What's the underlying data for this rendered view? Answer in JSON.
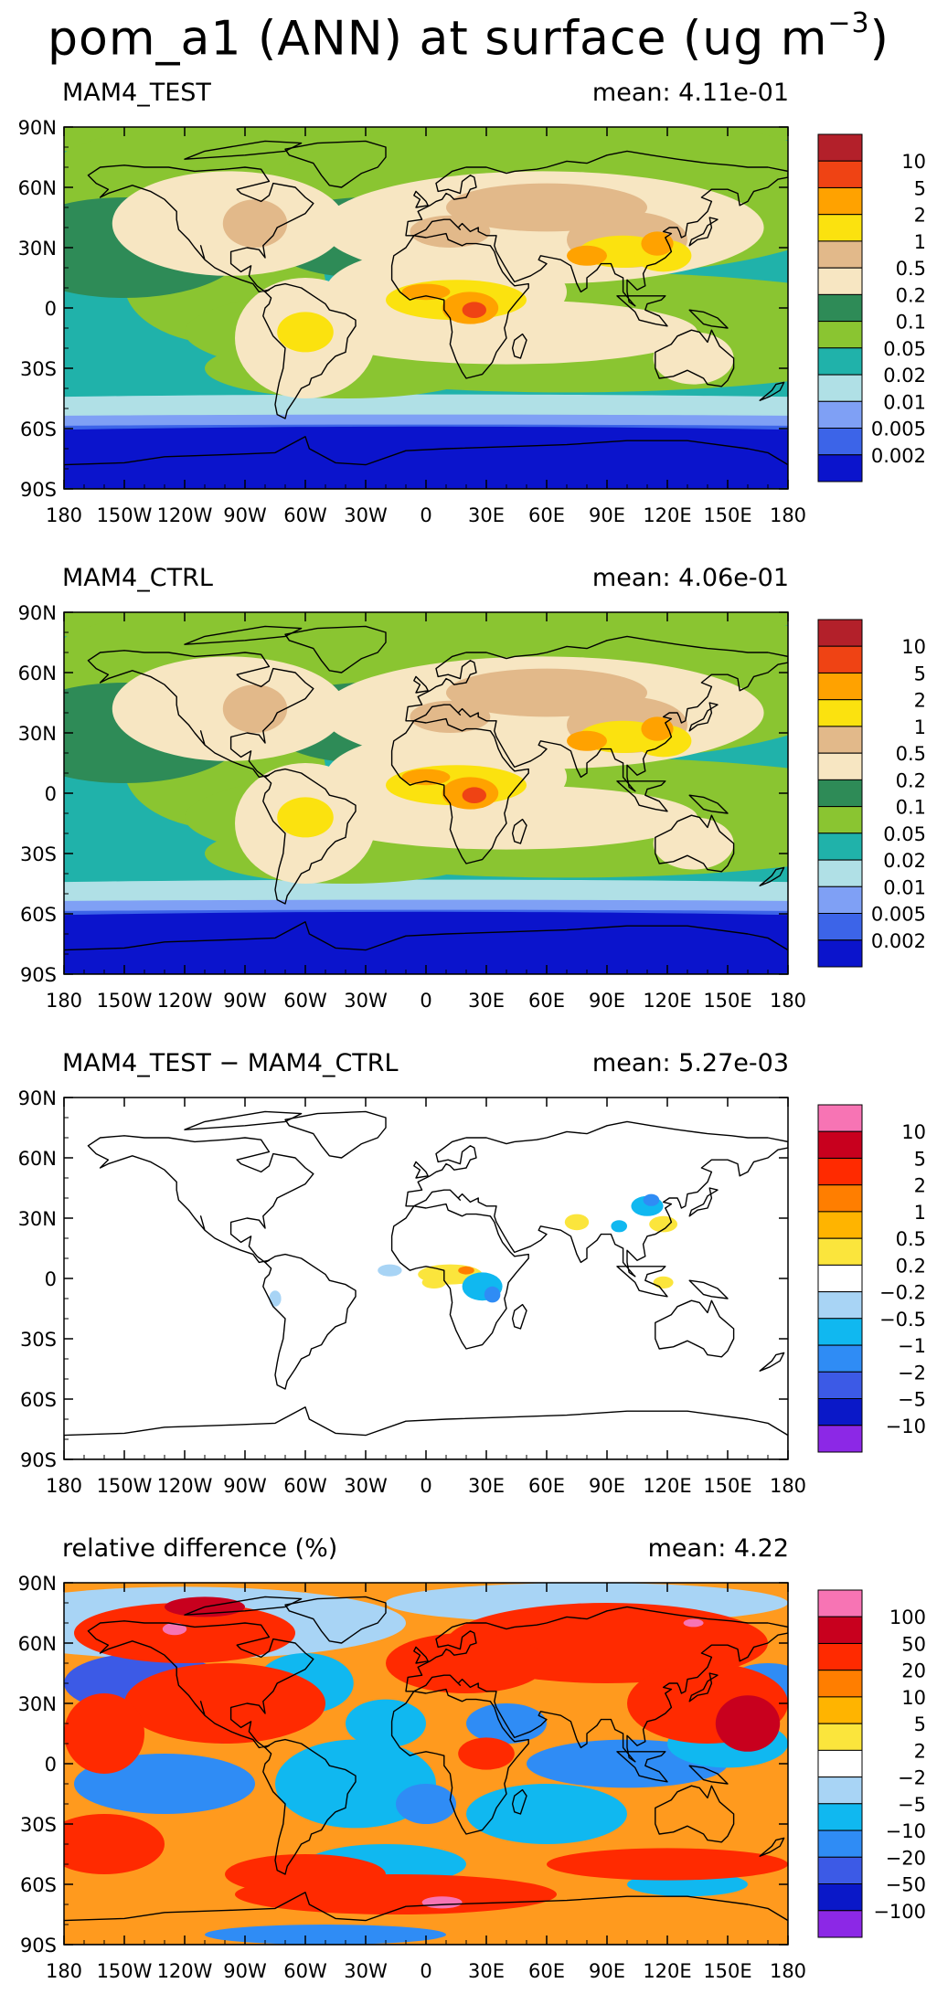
{
  "figure": {
    "title": "pom_a1 (ANN) at surface (ug m",
    "units_exponent": "−3"
  },
  "chart_data": [
    {
      "type": "heatmap",
      "title": "MAM4_TEST",
      "mean_label": "mean: 4.11e-01",
      "mean_value": 0.411,
      "x_ticks": [
        "180",
        "150W",
        "120W",
        "90W",
        "60W",
        "30W",
        "0",
        "30E",
        "60E",
        "90E",
        "120E",
        "150E",
        "180"
      ],
      "y_ticks": [
        "90N",
        "60N",
        "30N",
        "0",
        "30S",
        "60S",
        "90S"
      ],
      "xlim": [
        -180,
        180
      ],
      "ylim": [
        -90,
        90
      ],
      "colorbar": {
        "labels": [
          "10",
          "5",
          "2",
          "1",
          "0.5",
          "0.2",
          "0.1",
          "0.05",
          "0.02",
          "0.01",
          "0.005",
          "0.002"
        ],
        "colors": [
          "#b3202a",
          "#ef4314",
          "#ffa200",
          "#fbe20f",
          "#e2b98a",
          "#f7e6c2",
          "#2e8b57",
          "#8ac531",
          "#20b2aa",
          "#b0e0e6",
          "#7fa0f5",
          "#3c64e8",
          "#0b14cc"
        ]
      },
      "background": "#20b2aa"
    },
    {
      "type": "heatmap",
      "title": "MAM4_CTRL",
      "mean_label": "mean: 4.06e-01",
      "mean_value": 0.406,
      "x_ticks": [
        "180",
        "150W",
        "120W",
        "90W",
        "60W",
        "30W",
        "0",
        "30E",
        "60E",
        "90E",
        "120E",
        "150E",
        "180"
      ],
      "y_ticks": [
        "90N",
        "60N",
        "30N",
        "0",
        "30S",
        "60S",
        "90S"
      ],
      "xlim": [
        -180,
        180
      ],
      "ylim": [
        -90,
        90
      ],
      "colorbar": {
        "labels": [
          "10",
          "5",
          "2",
          "1",
          "0.5",
          "0.2",
          "0.1",
          "0.05",
          "0.02",
          "0.01",
          "0.005",
          "0.002"
        ],
        "colors": [
          "#b3202a",
          "#ef4314",
          "#ffa200",
          "#fbe20f",
          "#e2b98a",
          "#f7e6c2",
          "#2e8b57",
          "#8ac531",
          "#20b2aa",
          "#b0e0e6",
          "#7fa0f5",
          "#3c64e8",
          "#0b14cc"
        ]
      },
      "background": "#20b2aa"
    },
    {
      "type": "heatmap",
      "title": "MAM4_TEST − MAM4_CTRL",
      "mean_label": "mean: 5.27e-03",
      "mean_value": 0.00527,
      "x_ticks": [
        "180",
        "150W",
        "120W",
        "90W",
        "60W",
        "30W",
        "0",
        "30E",
        "60E",
        "90E",
        "120E",
        "150E",
        "180"
      ],
      "y_ticks": [
        "90N",
        "60N",
        "30N",
        "0",
        "30S",
        "60S",
        "90S"
      ],
      "xlim": [
        -180,
        180
      ],
      "ylim": [
        -90,
        90
      ],
      "colorbar": {
        "labels": [
          "10",
          "5",
          "2",
          "1",
          "0.5",
          "0.2",
          "−0.2",
          "−0.5",
          "−1",
          "−2",
          "−5",
          "−10"
        ],
        "colors": [
          "#f774b4",
          "#c8001e",
          "#ff2a00",
          "#ff7e00",
          "#ffb400",
          "#fbe53c",
          "#ffffff",
          "#a8d4f5",
          "#10b8f0",
          "#2f8cf5",
          "#3c5ae6",
          "#0a18c8",
          "#8c28e6"
        ]
      },
      "background": "#ffffff"
    },
    {
      "type": "heatmap",
      "title": "relative difference (%)",
      "mean_label": "mean:  4.22",
      "mean_value": 4.22,
      "x_ticks": [
        "180",
        "150W",
        "120W",
        "90W",
        "60W",
        "30W",
        "0",
        "30E",
        "60E",
        "90E",
        "120E",
        "150E",
        "180"
      ],
      "y_ticks": [
        "90N",
        "60N",
        "30N",
        "0",
        "30S",
        "60S",
        "90S"
      ],
      "xlim": [
        -180,
        180
      ],
      "ylim": [
        -90,
        90
      ],
      "colorbar": {
        "labels": [
          "100",
          "50",
          "20",
          "10",
          "5",
          "2",
          "−2",
          "−5",
          "−10",
          "−20",
          "−50",
          "−100"
        ],
        "colors": [
          "#f774b4",
          "#c8001e",
          "#ff2a00",
          "#ff7e00",
          "#ffb400",
          "#fbe53c",
          "#ffffff",
          "#a8d4f5",
          "#10b8f0",
          "#2f8cf5",
          "#3c5ae6",
          "#0a18c8",
          "#8c28e6"
        ]
      },
      "background": "#ff9a1e"
    }
  ]
}
